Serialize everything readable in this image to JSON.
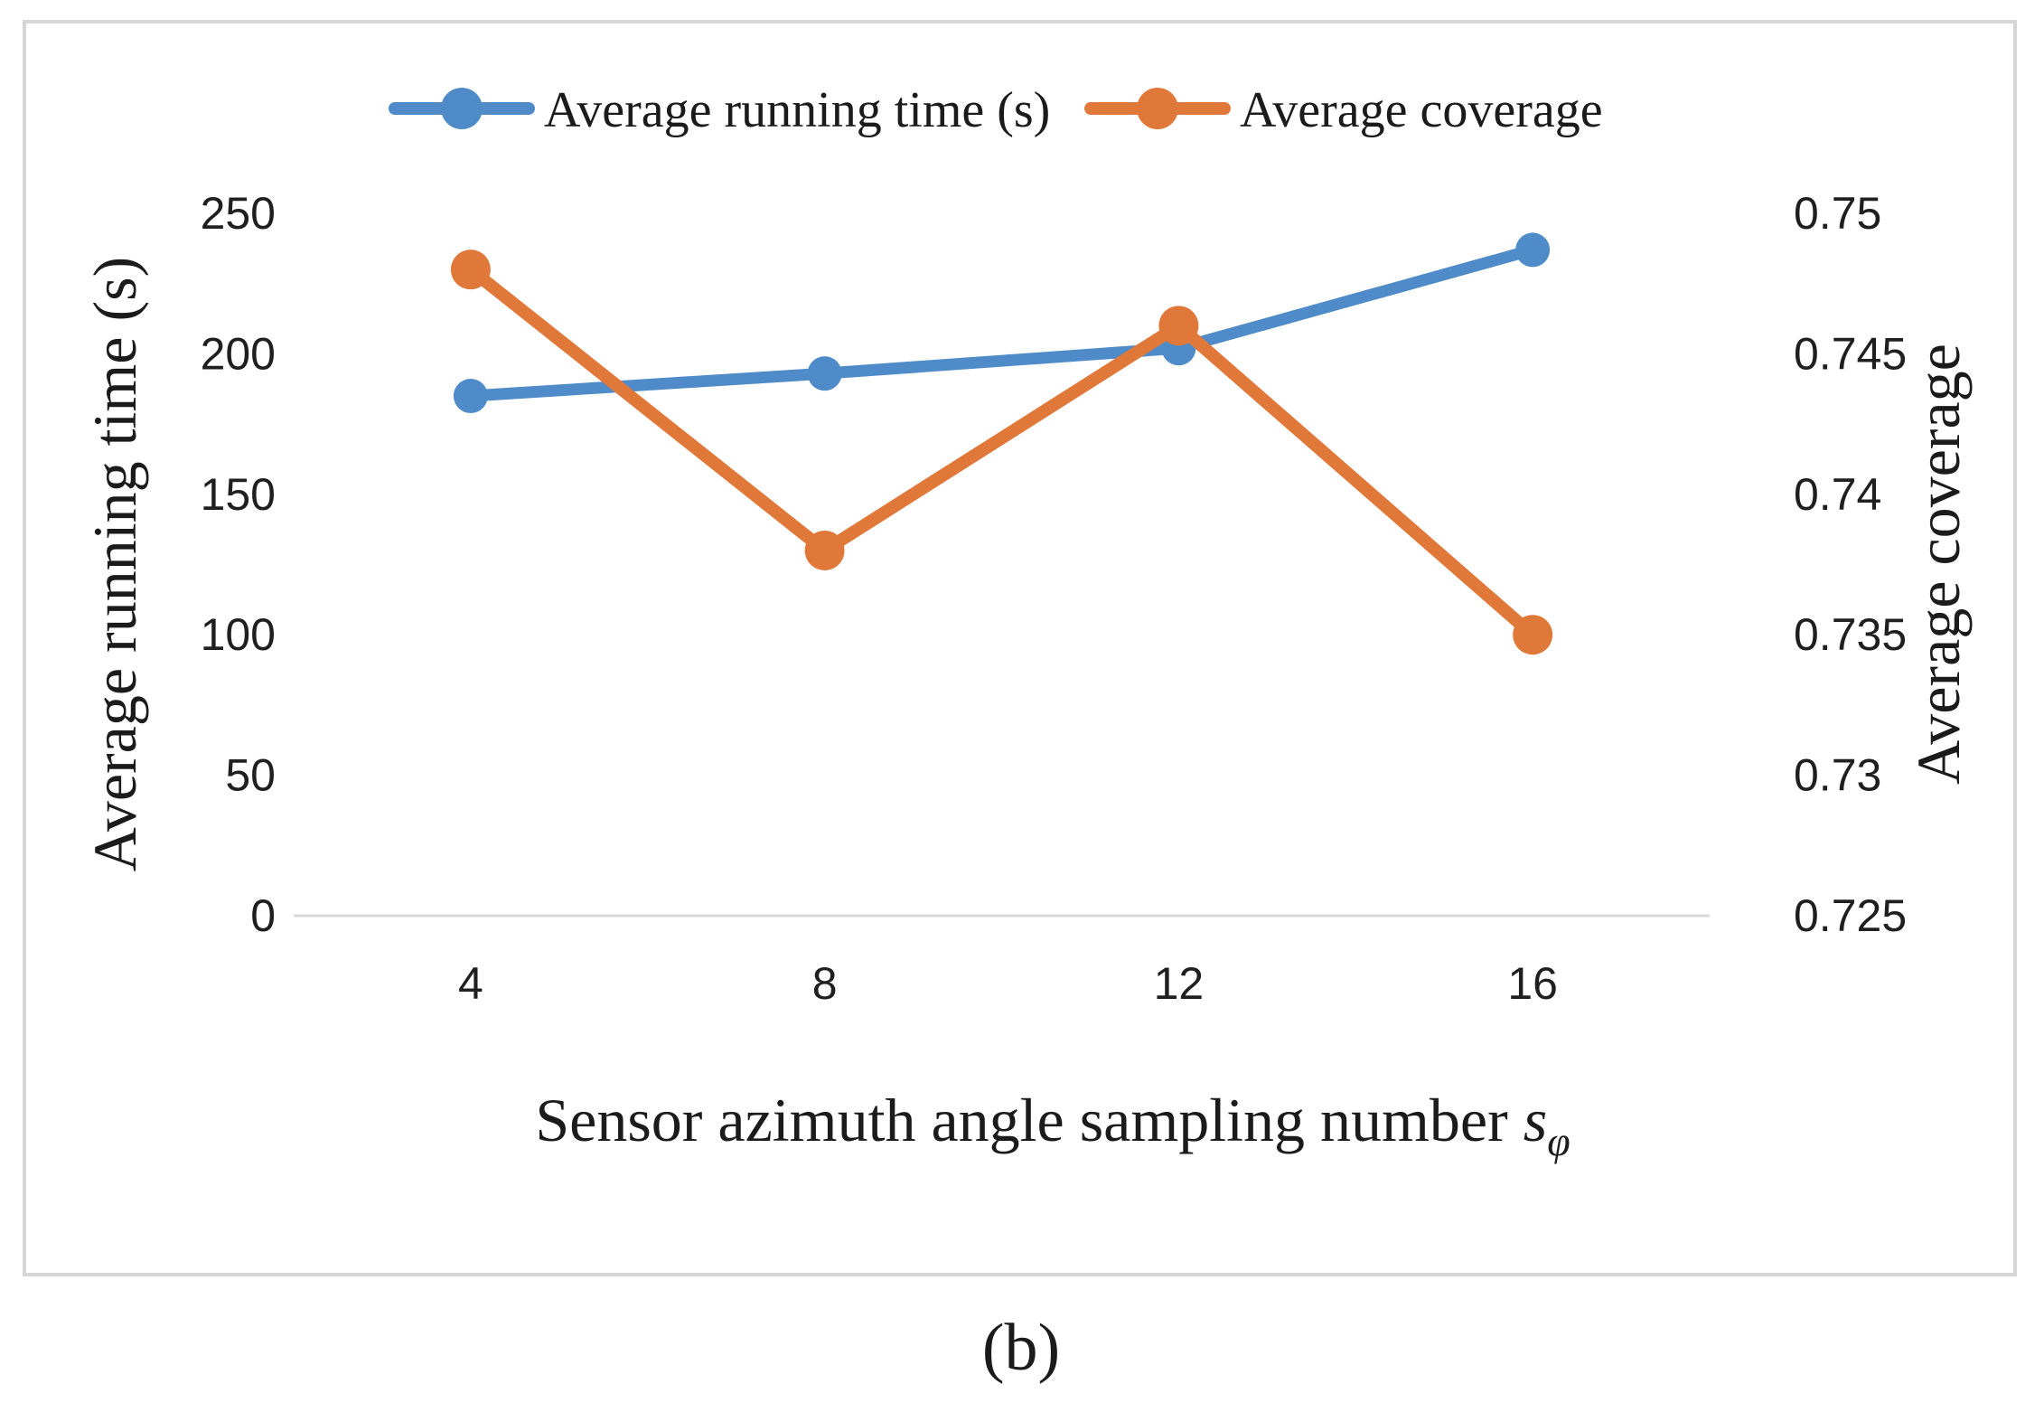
{
  "figure": {
    "caption": "(b)"
  },
  "chart_data": {
    "type": "line",
    "categories": [
      "4",
      "8",
      "12",
      "16"
    ],
    "series": [
      {
        "name": "Average running time (s)",
        "axis": "left",
        "color": "#4E8BC8",
        "values": [
          185,
          193,
          202,
          237
        ]
      },
      {
        "name": "Average coverage",
        "axis": "right",
        "color": "#E0783A",
        "values": [
          0.748,
          0.738,
          0.746,
          0.735
        ]
      }
    ],
    "left_axis": {
      "label": "Average running time (s)",
      "min": 0,
      "max": 250,
      "ticks": [
        "0",
        "50",
        "100",
        "150",
        "200",
        "250"
      ]
    },
    "right_axis": {
      "label": "Average coverage",
      "min": 0.725,
      "max": 0.75,
      "ticks": [
        "0.725",
        "0.73",
        "0.735",
        "0.74",
        "0.745",
        "0.75"
      ]
    },
    "x_axis": {
      "label_main": "Sensor azimuth angle sampling number ",
      "label_var": "s",
      "label_sub": "φ"
    },
    "legend_position": "top-center",
    "grid": "none",
    "colors": {
      "axis_line": "#d9d9d9",
      "frame_border": "#d6d6d6",
      "text": "#1b1b1b"
    }
  }
}
